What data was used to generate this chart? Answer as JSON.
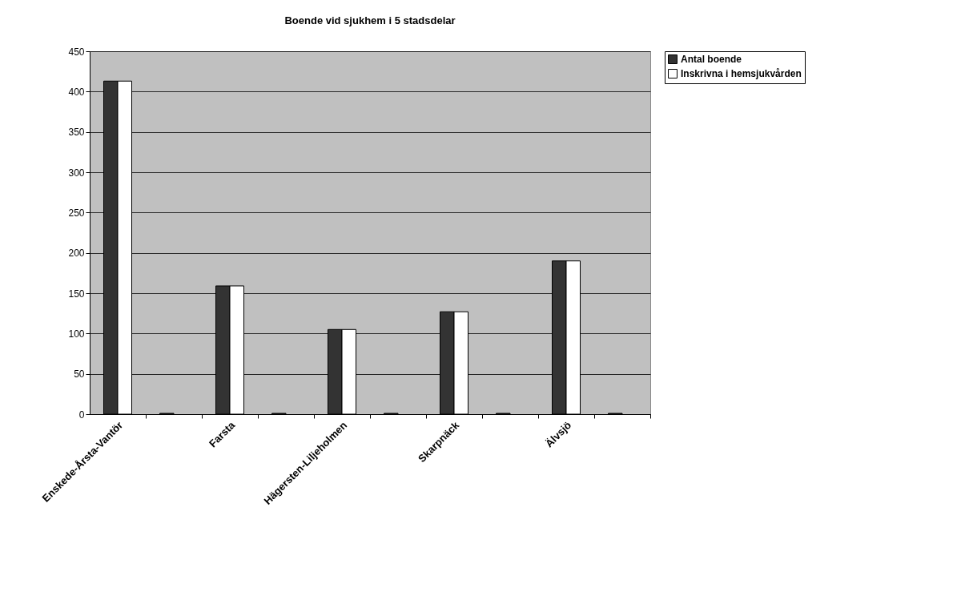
{
  "chart_data": {
    "type": "bar",
    "title": "Boende vid sjukhem i 5 stadsdelar",
    "categories": [
      "Enskede-Årsta-Vantör",
      null,
      "Farsta",
      null,
      "Hägersten-Liljeholmen",
      null,
      "Skarpnäck",
      null,
      "Älvsjö",
      null
    ],
    "series": [
      {
        "name": "Antal boende",
        "color": "#333333",
        "values": [
          413,
          1,
          159,
          1,
          105,
          1,
          127,
          1,
          190,
          1
        ]
      },
      {
        "name": "Inskrivna i hemsjukvården",
        "color": "#ffffff",
        "values": [
          413,
          null,
          159,
          null,
          105,
          null,
          127,
          null,
          190,
          null
        ]
      }
    ],
    "ylim": [
      0,
      450
    ],
    "yticks": [
      0,
      50,
      100,
      150,
      200,
      250,
      300,
      350,
      400,
      450
    ],
    "grid": "y",
    "legend": "right"
  }
}
